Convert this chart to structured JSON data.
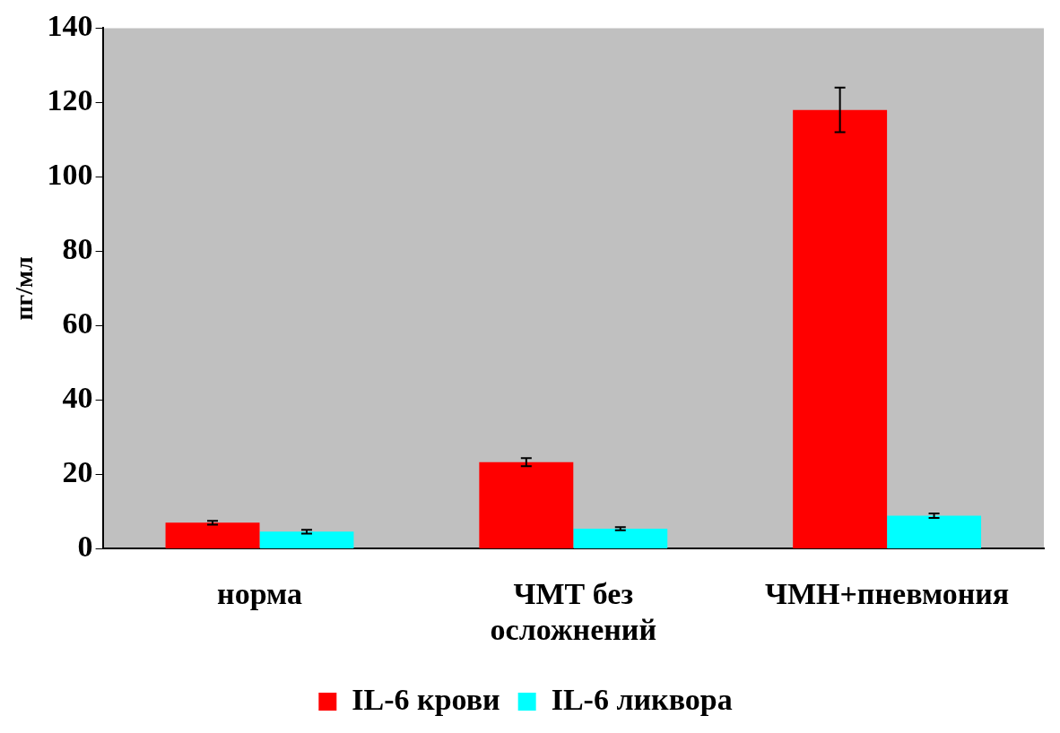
{
  "chart_data": {
    "type": "bar",
    "ylabel": "пг/мл",
    "categories": [
      "норма",
      "ЧМТ без осложнений",
      "ЧМН+пневмония"
    ],
    "series": [
      {
        "name": "IL-6 крови",
        "color": "#ff0000",
        "values": [
          7.0,
          23.3,
          118
        ],
        "errors": [
          0.5,
          1.1,
          6
        ]
      },
      {
        "name": "IL-6 ликвора",
        "color": "#00ffff",
        "values": [
          4.6,
          5.4,
          8.9
        ],
        "errors": [
          0.5,
          0.4,
          0.6
        ]
      }
    ],
    "ylim": [
      0,
      140
    ],
    "yticks": [
      0,
      20,
      40,
      60,
      80,
      100,
      120,
      140
    ],
    "grid": false,
    "legend": "bottom"
  }
}
